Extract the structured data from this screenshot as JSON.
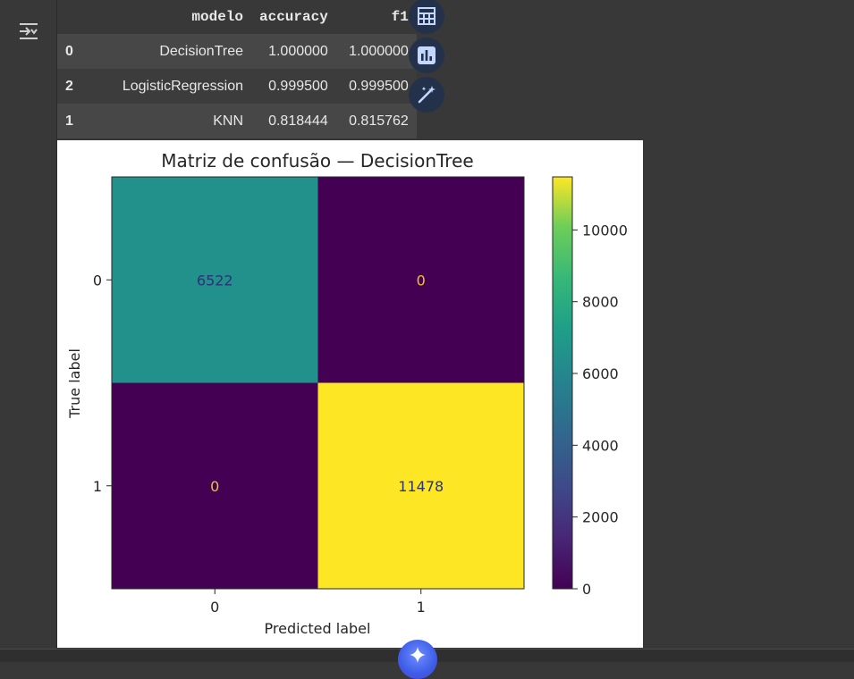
{
  "table": {
    "columns": [
      "",
      "modelo",
      "accuracy",
      "f1"
    ],
    "rows": [
      {
        "index": "0",
        "modelo": "DecisionTree",
        "accuracy": "1.000000",
        "f1": "1.000000"
      },
      {
        "index": "2",
        "modelo": "LogisticRegression",
        "accuracy": "0.999500",
        "f1": "0.999500"
      },
      {
        "index": "1",
        "modelo": "KNN",
        "accuracy": "0.818444",
        "f1": "0.815762"
      }
    ]
  },
  "tools": {
    "icons": [
      "table-icon",
      "chart-icon",
      "magic-wand-icon"
    ]
  },
  "chart_data": {
    "type": "heatmap",
    "title": "Matriz de confusão — DecisionTree",
    "xlabel": "Predicted label",
    "ylabel": "True label",
    "x_categories": [
      "0",
      "1"
    ],
    "y_categories": [
      "0",
      "1"
    ],
    "values": [
      [
        6522,
        0
      ],
      [
        0,
        11478
      ]
    ],
    "colormap": "viridis",
    "colorbar": {
      "ticks": [
        0,
        2000,
        4000,
        6000,
        8000,
        10000
      ],
      "tick_labels": [
        "0",
        "2000",
        "4000",
        "6000",
        "8000",
        "10000"
      ],
      "vmin": 0,
      "vmax": 11478
    },
    "cell_text_colors": {
      "dark": "#2a3377",
      "light": "#f0c030"
    }
  },
  "colors": {
    "background": "#383838",
    "tool_button": "#23324a",
    "tool_icon": "#c4d7ff"
  }
}
